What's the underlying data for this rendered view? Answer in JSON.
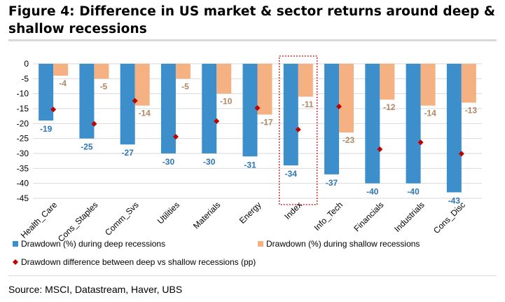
{
  "title": "Figure 4: Difference in US market & sector returns around deep & shallow recessions",
  "source": "Source: MSCI, Datastream, Haver, UBS",
  "colors": {
    "deep": "#3d8fcc",
    "shallow": "#f6b183",
    "diff": "#c00000",
    "deep_label": "#2e75b6",
    "shallow_label": "#b08763",
    "highlight_box": "#c00000",
    "grid": "#d9d9d9"
  },
  "chart_data": {
    "type": "bar",
    "title": "",
    "xlabel": "",
    "ylabel": "",
    "ylim": [
      -45,
      0
    ],
    "yticks": [
      0,
      -5,
      -10,
      -15,
      -20,
      -25,
      -30,
      -35,
      -40,
      -45
    ],
    "grid": true,
    "legend_position": "bottom",
    "categories": [
      "Health_Care",
      "Cons_Staples",
      "Comm_Svs",
      "Utilities",
      "Materials",
      "Energy",
      "Index",
      "Info_Tech",
      "Financials",
      "Industrials",
      "Cons_Disc"
    ],
    "highlighted_category": "Index",
    "series": [
      {
        "name": "Drawdown (%) during deep recessions",
        "kind": "bar",
        "values": [
          -19,
          -25,
          -27,
          -30,
          -30,
          -31,
          -34,
          -37,
          -40,
          -40,
          -43
        ],
        "labels": [
          "-19",
          "-25",
          "-27",
          "-30",
          "-30",
          "-31",
          "-34",
          "-37",
          "-40",
          "-40",
          "-43"
        ]
      },
      {
        "name": "Drawdown (%) during shallow recessions",
        "kind": "bar",
        "values": [
          -4,
          -5,
          -14,
          -5,
          -10,
          -17,
          -11,
          -23,
          -12,
          -14,
          -13
        ],
        "labels": [
          "-4",
          "-5",
          "-14",
          "-5",
          "-10",
          "-17",
          "-11",
          "-23",
          "-12",
          "-14",
          "-13"
        ]
      },
      {
        "name": "Drawdown difference between deep vs shallow recessions (pp)",
        "kind": "marker",
        "values": [
          -15.3,
          -20.1,
          -12.4,
          -24.4,
          -19.2,
          -14.8,
          -22,
          -14.3,
          -28.6,
          -26.3,
          -30.1
        ]
      }
    ]
  }
}
